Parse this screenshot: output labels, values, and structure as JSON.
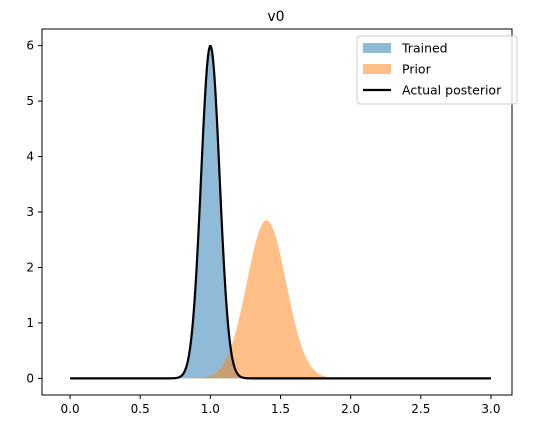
{
  "chart_data": {
    "type": "area",
    "title": "v0",
    "xlabel": "",
    "ylabel": "",
    "xlim": [
      -0.2,
      3.15
    ],
    "ylim": [
      -0.3,
      6.3
    ],
    "xticks": [
      "0.0",
      "0.5",
      "1.0",
      "1.5",
      "2.0",
      "2.5",
      "3.0"
    ],
    "xtick_values": [
      0,
      0.5,
      1.0,
      1.5,
      2.0,
      2.5,
      3.0
    ],
    "yticks": [
      "0",
      "1",
      "2",
      "3",
      "4",
      "5",
      "6"
    ],
    "ytick_values": [
      0,
      1,
      2,
      3,
      4,
      5,
      6
    ],
    "grid": false,
    "legend_position": "top-right",
    "series": [
      {
        "name": "Trained",
        "kind": "fill",
        "color": "#1f77b4",
        "opacity": 0.5,
        "mean": 1.0,
        "sd": 0.066,
        "peak": 6.0
      },
      {
        "name": "Prior",
        "kind": "fill",
        "color": "#ff7f0e",
        "opacity": 0.5,
        "mean": 1.4,
        "sd": 0.14,
        "peak": 2.85
      },
      {
        "name": "Actual posterior",
        "kind": "line",
        "color": "#000000",
        "mean": 1.0,
        "sd": 0.066,
        "peak": 6.0
      }
    ],
    "x_range": [
      0,
      3.0
    ]
  }
}
